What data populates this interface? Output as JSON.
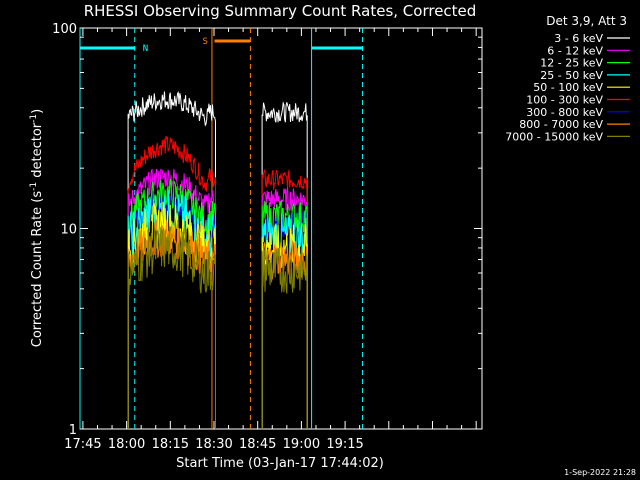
{
  "chart_data": {
    "type": "line",
    "title": "RHESSI Observing Summary Count Rates, Corrected",
    "xlabel": "Start Time (03-Jan-17 17:44:02)",
    "ylabel_main": "Corrected Count Rate (s",
    "ylabel_sup1": "-1",
    "ylabel_mid": " detector",
    "ylabel_sup2": "-1",
    "ylabel_end": ")",
    "yscale": "log",
    "ylim": [
      1,
      100
    ],
    "xlim_min": [
      -1,
      137
    ],
    "x_ticks": [
      {
        "t": 0,
        "label": "17:45"
      },
      {
        "t": 15,
        "label": "18:00"
      },
      {
        "t": 30,
        "label": "18:15"
      },
      {
        "t": 45,
        "label": "18:30"
      },
      {
        "t": 60,
        "label": "18:45"
      },
      {
        "t": 75,
        "label": "19:00"
      },
      {
        "t": 90,
        "label": "19:15"
      }
    ],
    "y_ticks": [
      {
        "v": 1,
        "label": "1"
      },
      {
        "v": 10,
        "label": "10"
      },
      {
        "v": 100,
        "label": "100"
      }
    ],
    "legend_header": "Det 3,9, Att 3",
    "legend_position": "top-right",
    "series": [
      {
        "name": "3 - 6 keV",
        "color": "#ffffff",
        "level": [
          36,
          44,
          38
        ],
        "level2": 38,
        "noise": 0.05
      },
      {
        "name": "6 - 12 keV",
        "color": "#ff00ff",
        "level": [
          13,
          18,
          14
        ],
        "level2": 14,
        "noise": 0.06
      },
      {
        "name": "12 - 25 keV",
        "color": "#00ff00",
        "level": [
          11,
          15,
          11.5
        ],
        "level2": 11.5,
        "noise": 0.08
      },
      {
        "name": "25 - 50 keV",
        "color": "#00ffff",
        "level": [
          9,
          12,
          9
        ],
        "level2": 9,
        "noise": 0.12
      },
      {
        "name": "50 - 100 keV",
        "color": "#ffff00",
        "level": [
          8,
          10.5,
          8
        ],
        "level2": 8,
        "noise": 0.12
      },
      {
        "name": "100 - 300 keV",
        "color": "#ff0000",
        "level": [
          17,
          26,
          18
        ],
        "level2": 17.5,
        "noise": 0.05
      },
      {
        "name": "300 - 800 keV",
        "color": "#0000ff",
        "level": [
          10,
          13.5,
          10.5
        ],
        "level2": 10.5,
        "noise": 0.07
      },
      {
        "name": "800 - 7000 keV",
        "color": "#ff8000",
        "level": [
          7,
          9,
          7
        ],
        "level2": 7,
        "noise": 0.1
      },
      {
        "name": "7000 - 15000 keV",
        "color": "#808000",
        "level": [
          6,
          8,
          6.2
        ],
        "level2": 6.2,
        "noise": 0.12
      }
    ],
    "segments": [
      [
        15.5,
        45.5
      ],
      [
        61.5,
        77
      ]
    ],
    "annotations": {
      "night": [
        {
          "t_start": -1,
          "t_end": 17.8,
          "label": ""
        },
        {
          "t_start": 17.8,
          "t_end": 17.8,
          "label": "N"
        },
        {
          "t_start": 78.5,
          "t_end": 96,
          "label": ""
        }
      ],
      "saa": {
        "t_start": 44.5,
        "t_end": 57.5,
        "label": "S"
      }
    },
    "vlines": [
      {
        "t": -1,
        "color": "#00ffff",
        "style": "solid"
      },
      {
        "t": 17.8,
        "color": "#00ffff",
        "style": "dashed"
      },
      {
        "t": 44.3,
        "color": "#ff8000",
        "style": "solid"
      },
      {
        "t": 57.5,
        "color": "#ff8000",
        "style": "dashed"
      },
      {
        "t": 78.5,
        "color": "#00ffff",
        "style": "solid"
      },
      {
        "t": 96,
        "color": "#00ffff",
        "style": "dashed"
      }
    ],
    "footer": "1-Sep-2022 21:28"
  }
}
